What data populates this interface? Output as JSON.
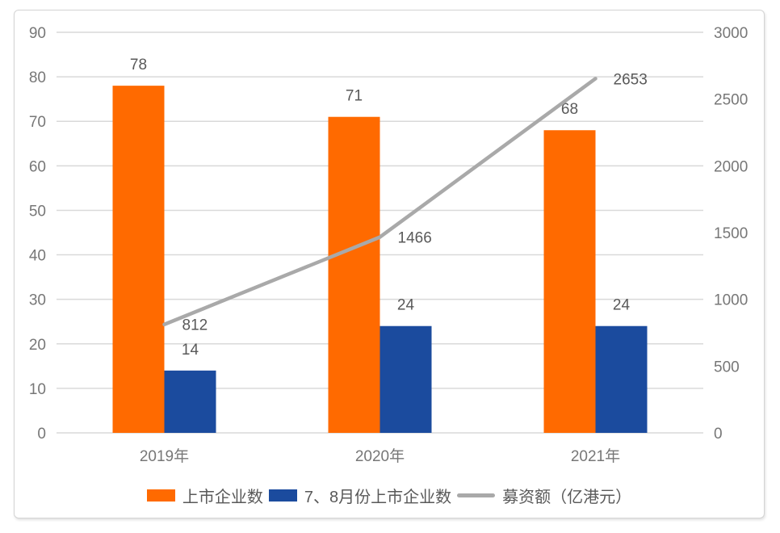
{
  "chart_data": {
    "type": "bar",
    "combo_note": "clustered bars on left axis + line on right axis",
    "title": "",
    "xlabel": "",
    "ylabel": "",
    "categories": [
      "2019年",
      "2020年",
      "2021年"
    ],
    "series": [
      {
        "name": "上市企业数",
        "mark": "bar",
        "axis": "left",
        "color": "#FF6A00",
        "values": [
          78,
          71,
          68
        ]
      },
      {
        "name": "7、8月份上市企业数",
        "mark": "bar",
        "axis": "left",
        "color": "#1B4B9E",
        "values": [
          14,
          24,
          24
        ]
      },
      {
        "name": "募资额（亿港元）",
        "mark": "line",
        "axis": "right",
        "color": "#A9A9A9",
        "values": [
          812,
          1466,
          2653
        ]
      }
    ],
    "left_axis": {
      "min": 0,
      "max": 90,
      "step": 10,
      "ticks": [
        0,
        10,
        20,
        30,
        40,
        50,
        60,
        70,
        80,
        90
      ]
    },
    "right_axis": {
      "min": 0,
      "max": 3000,
      "step": 500,
      "ticks": [
        0,
        500,
        1000,
        1500,
        2000,
        2500,
        3000
      ]
    },
    "grid": true,
    "data_labels": true,
    "legend_position": "bottom"
  },
  "colors": {
    "background": "#FFFFFF",
    "card_border": "#D4D4D4",
    "gridline": "#D9D9D9",
    "axis_text": "#777777",
    "data_label_text": "#595959",
    "legend_text": "#595959"
  }
}
